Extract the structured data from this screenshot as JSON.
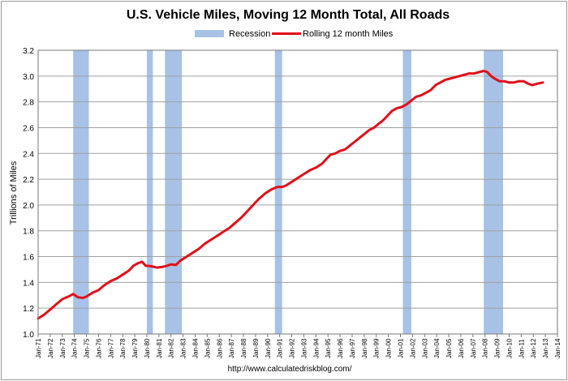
{
  "chart_data": {
    "type": "line",
    "title": "U.S. Vehicle Miles, Moving 12 Month Total, All Roads",
    "ylabel": "Trillions of Miles",
    "xlabel": "",
    "ylim": [
      1.0,
      3.2
    ],
    "yticks": [
      "1.0",
      "1.2",
      "1.4",
      "1.6",
      "1.8",
      "2.0",
      "2.2",
      "2.4",
      "2.6",
      "2.8",
      "3.0",
      "3.2"
    ],
    "xlim": [
      1971.0,
      2013.0
    ],
    "xticks": [
      "Jan-71",
      "Jan-72",
      "Jan-73",
      "Jan-74",
      "Jan-75",
      "Jan-76",
      "Jan-77",
      "Jan-78",
      "Jan-79",
      "Jan-80",
      "Jan-81",
      "Jan-82",
      "Jan-83",
      "Jan-84",
      "Jan-85",
      "Jan-86",
      "Jan-87",
      "Jan-88",
      "Jan-89",
      "Jan-90",
      "Jan-91",
      "Jan-92",
      "Jan-93",
      "Jan-94",
      "Jan-95",
      "Jan-96",
      "Jan-97",
      "Jan-98",
      "Jan-99",
      "Jan-00",
      "Jan-01",
      "Jan-02",
      "Jan-03",
      "Jan-04",
      "Jan-05",
      "Jan-06",
      "Jan-07",
      "Jan-08",
      "Jan-09",
      "Jan-10",
      "Jan-11",
      "Jan-12",
      "Jan-13",
      "Jan-14"
    ],
    "grid": true,
    "legend": {
      "placement": "top-center",
      "entries": [
        {
          "name": "Recession",
          "kind": "band",
          "color": "#a7c2e6"
        },
        {
          "name": "Rolling 12 month Miles",
          "kind": "line",
          "color": "#e0101a"
        }
      ]
    },
    "recessions": [
      {
        "start": 1973.9,
        "end": 1975.2
      },
      {
        "start": 1980.0,
        "end": 1980.5
      },
      {
        "start": 1981.5,
        "end": 1982.9
      },
      {
        "start": 1990.6,
        "end": 1991.2
      },
      {
        "start": 2001.2,
        "end": 2001.9
      },
      {
        "start": 2007.9,
        "end": 2009.5
      }
    ],
    "series": [
      {
        "name": "Rolling 12 month Miles",
        "color": "#e0101a",
        "points": [
          [
            1971.0,
            1.12
          ],
          [
            1971.5,
            1.15
          ],
          [
            1972.0,
            1.19
          ],
          [
            1972.5,
            1.23
          ],
          [
            1973.0,
            1.27
          ],
          [
            1973.5,
            1.29
          ],
          [
            1973.9,
            1.31
          ],
          [
            1974.3,
            1.285
          ],
          [
            1974.7,
            1.28
          ],
          [
            1975.0,
            1.29
          ],
          [
            1975.5,
            1.32
          ],
          [
            1976.0,
            1.34
          ],
          [
            1976.5,
            1.38
          ],
          [
            1977.0,
            1.41
          ],
          [
            1977.5,
            1.43
          ],
          [
            1978.0,
            1.46
          ],
          [
            1978.5,
            1.49
          ],
          [
            1978.9,
            1.53
          ],
          [
            1979.3,
            1.55
          ],
          [
            1979.6,
            1.56
          ],
          [
            1979.9,
            1.53
          ],
          [
            1980.4,
            1.525
          ],
          [
            1980.8,
            1.515
          ],
          [
            1981.3,
            1.52
          ],
          [
            1981.7,
            1.53
          ],
          [
            1982.0,
            1.54
          ],
          [
            1982.4,
            1.535
          ],
          [
            1982.8,
            1.57
          ],
          [
            1983.3,
            1.6
          ],
          [
            1983.8,
            1.63
          ],
          [
            1984.3,
            1.66
          ],
          [
            1984.8,
            1.7
          ],
          [
            1985.3,
            1.73
          ],
          [
            1985.8,
            1.76
          ],
          [
            1986.3,
            1.79
          ],
          [
            1986.8,
            1.82
          ],
          [
            1987.3,
            1.86
          ],
          [
            1987.8,
            1.9
          ],
          [
            1988.3,
            1.95
          ],
          [
            1988.8,
            2.0
          ],
          [
            1989.3,
            2.05
          ],
          [
            1989.8,
            2.09
          ],
          [
            1990.3,
            2.12
          ],
          [
            1990.8,
            2.14
          ],
          [
            1991.2,
            2.14
          ],
          [
            1991.5,
            2.15
          ],
          [
            1992.0,
            2.18
          ],
          [
            1992.5,
            2.21
          ],
          [
            1993.0,
            2.24
          ],
          [
            1993.5,
            2.27
          ],
          [
            1994.0,
            2.29
          ],
          [
            1994.5,
            2.32
          ],
          [
            1994.9,
            2.36
          ],
          [
            1995.2,
            2.39
          ],
          [
            1995.6,
            2.4
          ],
          [
            1996.0,
            2.42
          ],
          [
            1996.4,
            2.43
          ],
          [
            1996.8,
            2.46
          ],
          [
            1997.2,
            2.49
          ],
          [
            1997.6,
            2.52
          ],
          [
            1998.0,
            2.55
          ],
          [
            1998.4,
            2.58
          ],
          [
            1998.8,
            2.6
          ],
          [
            1999.2,
            2.63
          ],
          [
            1999.6,
            2.66
          ],
          [
            2000.0,
            2.7
          ],
          [
            2000.3,
            2.73
          ],
          [
            2000.7,
            2.75
          ],
          [
            2001.1,
            2.76
          ],
          [
            2001.5,
            2.78
          ],
          [
            2001.9,
            2.81
          ],
          [
            2002.3,
            2.84
          ],
          [
            2002.7,
            2.85
          ],
          [
            2003.1,
            2.87
          ],
          [
            2003.5,
            2.89
          ],
          [
            2003.9,
            2.93
          ],
          [
            2004.3,
            2.95
          ],
          [
            2004.7,
            2.97
          ],
          [
            2005.1,
            2.98
          ],
          [
            2005.5,
            2.99
          ],
          [
            2005.9,
            3.0
          ],
          [
            2006.3,
            3.01
          ],
          [
            2006.7,
            3.02
          ],
          [
            2007.1,
            3.02
          ],
          [
            2007.5,
            3.03
          ],
          [
            2007.9,
            3.04
          ],
          [
            2008.2,
            3.03
          ],
          [
            2008.5,
            3.0
          ],
          [
            2008.8,
            2.98
          ],
          [
            2009.2,
            2.96
          ],
          [
            2009.6,
            2.96
          ],
          [
            2010.0,
            2.95
          ],
          [
            2010.4,
            2.95
          ],
          [
            2010.8,
            2.96
          ],
          [
            2011.2,
            2.96
          ],
          [
            2011.6,
            2.94
          ],
          [
            2011.9,
            2.93
          ],
          [
            2012.3,
            2.94
          ],
          [
            2012.8,
            2.95
          ]
        ]
      }
    ]
  },
  "source_text": "http://www.calculatedriskblog.com/"
}
